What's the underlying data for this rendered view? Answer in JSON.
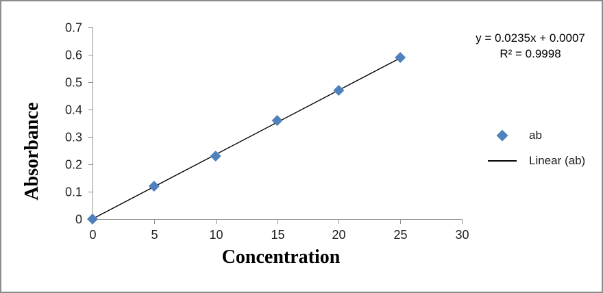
{
  "frame": {
    "background": "#ffffff",
    "border_color": "#8c8c8c"
  },
  "chart_data": {
    "type": "scatter",
    "title": "",
    "xlabel": "Concentration",
    "ylabel": "Absorbance",
    "xlim": [
      0,
      30
    ],
    "ylim": [
      0,
      0.7
    ],
    "x_ticks": [
      "0",
      "5",
      "10",
      "15",
      "20",
      "25",
      "30"
    ],
    "y_ticks": [
      "0",
      "0.1",
      "0.2",
      "0.3",
      "0.4",
      "0.5",
      "0.6",
      "0.7"
    ],
    "grid": false,
    "axis_color": "#8f8f8f",
    "tick_label_color": "#1f1f1f",
    "series": [
      {
        "name": "ab",
        "marker": "diamond",
        "color": "#4F81BD",
        "x": [
          0,
          5,
          10,
          15,
          20,
          25
        ],
        "y": [
          0,
          0.12,
          0.23,
          0.36,
          0.47,
          0.59
        ]
      }
    ],
    "trendline": {
      "label": "Linear (ab)",
      "slope": 0.0235,
      "intercept": 0.0007,
      "x_start": 0,
      "x_end": 25,
      "color": "#000000"
    },
    "annotation": {
      "equation": "y = 0.0235x + 0.0007",
      "r_squared": "R² = 0.9998"
    },
    "legend": {
      "position": "right",
      "items": [
        {
          "label": "ab",
          "marker": "diamond",
          "color": "#4F81BD"
        },
        {
          "label": "Linear (ab)",
          "marker": "line",
          "color": "#000000"
        }
      ]
    }
  }
}
